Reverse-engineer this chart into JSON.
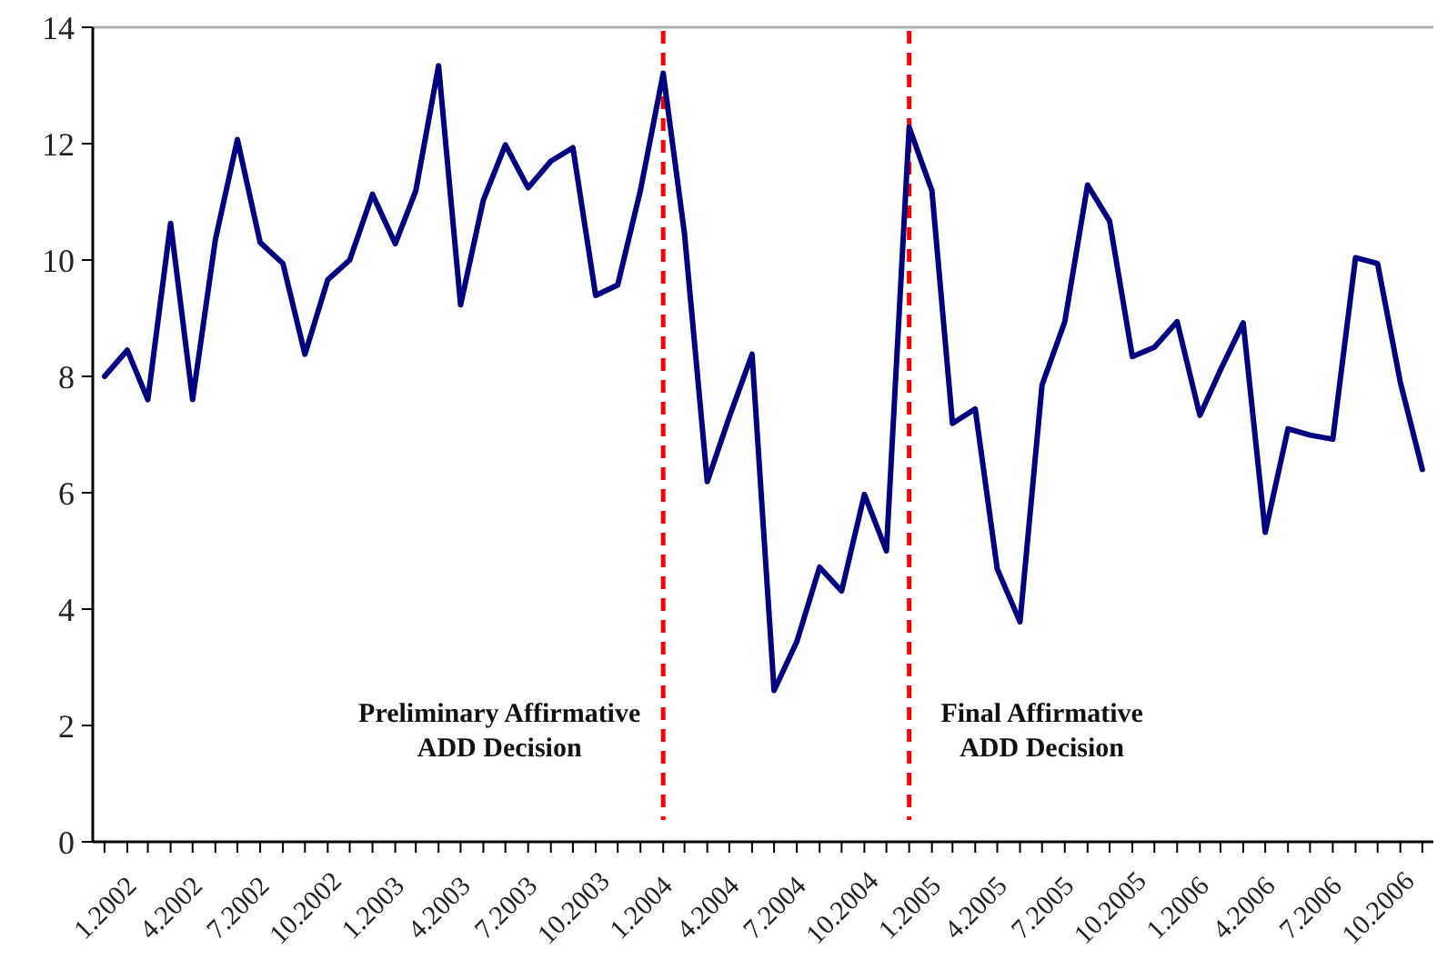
{
  "chart_data": {
    "type": "line",
    "x": [
      "2002-01",
      "2002-02",
      "2002-03",
      "2002-04",
      "2002-05",
      "2002-06",
      "2002-07",
      "2002-08",
      "2002-09",
      "2002-10",
      "2002-11",
      "2002-12",
      "2003-01",
      "2003-02",
      "2003-03",
      "2003-04",
      "2003-05",
      "2003-06",
      "2003-07",
      "2003-08",
      "2003-09",
      "2003-10",
      "2003-11",
      "2003-12",
      "2004-01",
      "2004-02",
      "2004-03",
      "2004-04",
      "2004-05",
      "2004-06",
      "2004-07",
      "2004-08",
      "2004-09",
      "2004-10",
      "2004-11",
      "2004-12",
      "2005-01",
      "2005-02",
      "2005-03",
      "2005-04",
      "2005-05",
      "2005-06",
      "2005-07",
      "2005-08",
      "2005-09",
      "2005-10",
      "2005-11",
      "2005-12",
      "2006-01",
      "2006-02",
      "2006-03",
      "2006-04",
      "2006-05",
      "2006-06",
      "2006-07",
      "2006-08",
      "2006-09",
      "2006-10",
      "2006-11",
      "2006-12"
    ],
    "series": [
      {
        "color": "#000080",
        "values": [
          8.0,
          8.45,
          7.6,
          10.63,
          7.6,
          10.35,
          12.07,
          10.3,
          9.94,
          8.38,
          9.66,
          10.0,
          11.13,
          10.28,
          11.19,
          13.34,
          9.23,
          11.03,
          11.98,
          11.24,
          11.7,
          11.93,
          9.39,
          9.57,
          11.2,
          13.21,
          10.45,
          6.19,
          7.3,
          8.38,
          2.6,
          3.44,
          4.72,
          4.31,
          5.97,
          5.0,
          12.28,
          11.19,
          7.19,
          7.44,
          4.69,
          3.78,
          7.85,
          8.94,
          11.29,
          10.67,
          8.34,
          8.5,
          8.94,
          7.33,
          8.11,
          8.92,
          5.32,
          7.1,
          6.99,
          6.92,
          10.04,
          9.94,
          7.9,
          6.4
        ]
      }
    ],
    "xlim": [
      "2001-12-16",
      "2006-12-16"
    ],
    "xticks": [
      {
        "value": "2002-01",
        "label": "1.2002"
      },
      {
        "value": "2002-02",
        "label": null
      },
      {
        "value": "2002-03",
        "label": null
      },
      {
        "value": "2002-04",
        "label": "4.2002"
      },
      {
        "value": "2002-05",
        "label": null
      },
      {
        "value": "2002-06",
        "label": null
      },
      {
        "value": "2002-07",
        "label": "7.2002"
      },
      {
        "value": "2002-08",
        "label": null
      },
      {
        "value": "2002-09",
        "label": null
      },
      {
        "value": "2002-10",
        "label": "10.2002"
      },
      {
        "value": "2002-11",
        "label": null
      },
      {
        "value": "2002-12",
        "label": null
      },
      {
        "value": "2003-01",
        "label": "1.2003"
      },
      {
        "value": "2003-02",
        "label": null
      },
      {
        "value": "2003-03",
        "label": null
      },
      {
        "value": "2003-04",
        "label": "4.2003"
      },
      {
        "value": "2003-05",
        "label": null
      },
      {
        "value": "2003-06",
        "label": null
      },
      {
        "value": "2003-07",
        "label": "7.2003"
      },
      {
        "value": "2003-08",
        "label": null
      },
      {
        "value": "2003-09",
        "label": null
      },
      {
        "value": "2003-10",
        "label": "10.2003"
      },
      {
        "value": "2003-11",
        "label": null
      },
      {
        "value": "2003-12",
        "label": null
      },
      {
        "value": "2004-01",
        "label": "1.2004"
      },
      {
        "value": "2004-02",
        "label": null
      },
      {
        "value": "2004-03",
        "label": null
      },
      {
        "value": "2004-04",
        "label": "4.2004"
      },
      {
        "value": "2004-05",
        "label": null
      },
      {
        "value": "2004-06",
        "label": null
      },
      {
        "value": "2004-07",
        "label": "7.2004"
      },
      {
        "value": "2004-08",
        "label": null
      },
      {
        "value": "2004-09",
        "label": null
      },
      {
        "value": "2004-10",
        "label": "10.2004"
      },
      {
        "value": "2004-11",
        "label": null
      },
      {
        "value": "2004-12",
        "label": null
      },
      {
        "value": "2005-01",
        "label": "1.2005"
      },
      {
        "value": "2005-02",
        "label": null
      },
      {
        "value": "2005-03",
        "label": null
      },
      {
        "value": "2005-04",
        "label": "4.2005"
      },
      {
        "value": "2005-05",
        "label": null
      },
      {
        "value": "2005-06",
        "label": null
      },
      {
        "value": "2005-07",
        "label": "7.2005"
      },
      {
        "value": "2005-08",
        "label": null
      },
      {
        "value": "2005-09",
        "label": null
      },
      {
        "value": "2005-10",
        "label": "10.2005"
      },
      {
        "value": "2005-11",
        "label": null
      },
      {
        "value": "2005-12",
        "label": null
      },
      {
        "value": "2006-01",
        "label": "1.2006"
      },
      {
        "value": "2006-02",
        "label": null
      },
      {
        "value": "2006-03",
        "label": null
      },
      {
        "value": "2006-04",
        "label": "4.2006"
      },
      {
        "value": "2006-05",
        "label": null
      },
      {
        "value": "2006-06",
        "label": null
      },
      {
        "value": "2006-07",
        "label": "7.2006"
      },
      {
        "value": "2006-08",
        "label": null
      },
      {
        "value": "2006-09",
        "label": null
      },
      {
        "value": "2006-10",
        "label": "10.2006"
      },
      {
        "value": "2006-11",
        "label": null
      },
      {
        "value": "2006-12",
        "label": null
      }
    ],
    "ylim": [
      0,
      14
    ],
    "yticks": [
      0,
      2,
      4,
      6,
      8,
      10,
      12,
      14
    ],
    "grid": false,
    "marker": "none",
    "line_style": "solid",
    "ref_lines": [
      {
        "axis": "x",
        "value": "2004-02",
        "label": "Preliminary Affirmative\nADD Decision",
        "color": "#ff0000",
        "line_style": "dashed"
      },
      {
        "axis": "x",
        "value": "2005-01",
        "label": "Final Affirmative\nADD Decision",
        "color": "#ff0000",
        "line_style": "dashed"
      }
    ]
  }
}
